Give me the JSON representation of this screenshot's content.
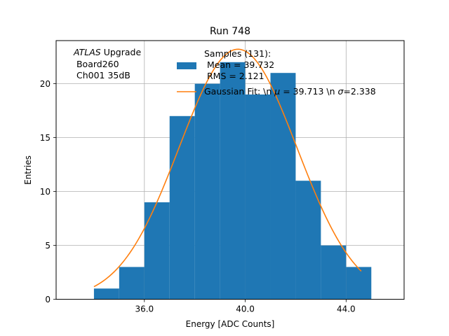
{
  "chart_data": {
    "type": "bar",
    "title": "Run 748",
    "xlabel": "Energy [ADC Counts]",
    "ylabel": "Entries",
    "xlim": [
      32.5,
      46.3
    ],
    "ylim": [
      0,
      24
    ],
    "xticks": [
      36,
      40,
      44
    ],
    "xtick_labels": [
      "36.0",
      "40.0",
      "44.0"
    ],
    "yticks": [
      0,
      5,
      10,
      15,
      20
    ],
    "yticks_labels": [
      "0",
      "5",
      "10",
      "15",
      "20"
    ],
    "grid": true,
    "bin_edges": [
      34,
      35,
      36,
      37,
      38,
      39,
      40,
      41,
      42,
      43,
      44,
      45
    ],
    "values": [
      1,
      3,
      9,
      17,
      20,
      22,
      19,
      21,
      11,
      5,
      3
    ],
    "bar_color": "#1f77b4",
    "fit": {
      "mu": 39.713,
      "sigma": 2.338,
      "amplitude": 23.2,
      "x_range": [
        34,
        44.6
      ],
      "color": "#ff7f0e"
    },
    "annotation": {
      "line1_italic": "ATLAS",
      "line1_rest": " Upgrade",
      "line2": " Board260",
      "line3": " Ch001 35dB"
    },
    "legend": {
      "placement": "top-center",
      "hist_label_1": "Samples (131):",
      "hist_label_2": " Mean = 39.732",
      "hist_label_3": " RMS = 2.121",
      "fit_label_prefix": "Gaussian Fit: \\n ",
      "fit_label_mu_sym": "μ",
      "fit_label_mid": " = 39.713 \\n ",
      "fit_label_sigma_sym": "σ",
      "fit_label_suffix": "=2.338"
    }
  }
}
